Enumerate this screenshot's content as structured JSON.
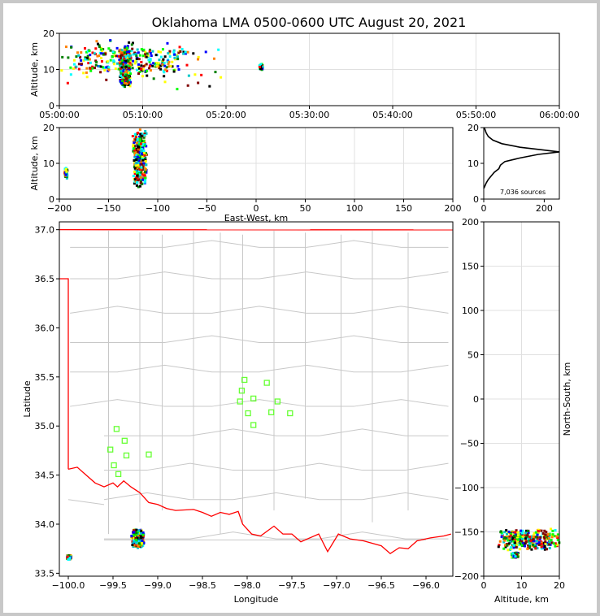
{
  "title": "Oklahoma LMA 0500-0600 UTC August 20, 2021",
  "colors": {
    "grid": "#e0e0e0",
    "state_border": "#ff0000",
    "county_lines": "#c8c8c8",
    "stations": "#66ff33",
    "profile": "#000000",
    "source_palette": [
      "#00ffff",
      "#00c8c8",
      "#0000ff",
      "#00ff00",
      "#008000",
      "#ffff00",
      "#ff8000",
      "#ff0000",
      "#800000",
      "#000000"
    ]
  },
  "chart_data": [
    {
      "id": "time-height",
      "type": "scatter",
      "xlabel": "",
      "ylabel": "Altitude, km",
      "xticks": [
        "05:00:00",
        "05:10:00",
        "05:20:00",
        "05:30:00",
        "05:40:00",
        "05:50:00",
        "06:00:00"
      ],
      "xlim_minutes": [
        0,
        60
      ],
      "ylim": [
        0,
        20
      ],
      "yticks": [
        0,
        10,
        20
      ],
      "grid": true,
      "clusters": [
        {
          "x_min": 0,
          "x_max": 16,
          "y_min": 9,
          "y_max": 17,
          "density": "high"
        },
        {
          "x_min": 7,
          "x_max": 8.5,
          "y_min": 5,
          "y_max": 17,
          "density": "high"
        },
        {
          "x_min": 0,
          "x_max": 20,
          "y_min": 4,
          "y_max": 19,
          "density": "low"
        },
        {
          "x_min": 23.8,
          "x_max": 24.3,
          "y_min": 10,
          "y_max": 12,
          "density": "medium"
        }
      ]
    },
    {
      "id": "east-west-altitude",
      "type": "scatter",
      "xlabel": "East-West, km",
      "ylabel": "Altitude, km",
      "xlim": [
        -200,
        200
      ],
      "xticks": [
        -200,
        -150,
        -100,
        -50,
        0,
        50,
        100,
        150,
        200
      ],
      "ylim": [
        0,
        20
      ],
      "yticks": [
        0,
        10,
        20
      ],
      "grid": true,
      "clusters": [
        {
          "x_min": -127,
          "x_max": -112,
          "y_min": 3,
          "y_max": 20,
          "density": "high"
        },
        {
          "x_min": -196,
          "x_max": -193,
          "y_min": 6,
          "y_max": 9,
          "density": "low"
        }
      ]
    },
    {
      "id": "altitude-histogram",
      "type": "line",
      "xlabel": "",
      "ylabel": "",
      "xlim": [
        0,
        250
      ],
      "xticks": [
        0,
        200
      ],
      "ylim": [
        0,
        20
      ],
      "yticks": [
        0,
        10,
        20
      ],
      "annotation": "7,036 sources",
      "profile": [
        [
          0,
          3
        ],
        [
          3,
          3.5
        ],
        [
          8,
          4.5
        ],
        [
          15,
          5.5
        ],
        [
          25,
          6.5
        ],
        [
          35,
          7.5
        ],
        [
          50,
          8.5
        ],
        [
          55,
          9.5
        ],
        [
          70,
          10.5
        ],
        [
          120,
          11.5
        ],
        [
          180,
          12.5
        ],
        [
          250,
          13.2
        ],
        [
          200,
          13.7
        ],
        [
          120,
          14.5
        ],
        [
          60,
          15.5
        ],
        [
          30,
          16.5
        ],
        [
          15,
          17.5
        ],
        [
          8,
          18.5
        ],
        [
          4,
          19.5
        ],
        [
          2,
          20
        ]
      ]
    },
    {
      "id": "plan-view",
      "type": "scatter",
      "xlabel": "Longitude",
      "ylabel": "Latitude",
      "xlim": [
        -100.1,
        -95.7
      ],
      "ylim": [
        33.47,
        37.08
      ],
      "xticks": [
        "-100.0",
        "-99.5",
        "-99.0",
        "-98.5",
        "-98.0",
        "-97.5",
        "-97.0",
        "-96.5",
        "-96.0"
      ],
      "yticks": [
        "33.5",
        "34.0",
        "34.5",
        "35.0",
        "35.5",
        "36.0",
        "36.5",
        "37.0"
      ],
      "grid": true,
      "stations": [
        [
          -98.03,
          35.47
        ],
        [
          -97.78,
          35.44
        ],
        [
          -98.06,
          35.36
        ],
        [
          -97.93,
          35.28
        ],
        [
          -97.66,
          35.25
        ],
        [
          -98.08,
          35.25
        ],
        [
          -97.99,
          35.13
        ],
        [
          -97.73,
          35.14
        ],
        [
          -97.52,
          35.13
        ],
        [
          -97.93,
          35.01
        ],
        [
          -99.46,
          34.97
        ],
        [
          -99.37,
          34.85
        ],
        [
          -99.53,
          34.76
        ],
        [
          -99.1,
          34.71
        ],
        [
          -99.35,
          34.7
        ],
        [
          -99.49,
          34.6
        ],
        [
          -99.44,
          34.51
        ]
      ],
      "clusters": [
        {
          "lon_min": -99.31,
          "lon_max": -99.16,
          "lat_min": 33.77,
          "lat_max": 33.96,
          "density": "high"
        },
        {
          "lon_min": -100.03,
          "lon_max": -99.98,
          "lat_min": 33.65,
          "lat_max": 33.7,
          "density": "low"
        }
      ]
    },
    {
      "id": "altitude-north-south",
      "type": "scatter",
      "xlabel": "Altitude, km",
      "ylabel": "North-South, km",
      "xlim": [
        0,
        20
      ],
      "xticks": [
        0,
        10,
        20
      ],
      "ylim": [
        -200,
        200
      ],
      "yticks": [
        200,
        150,
        100,
        50,
        0,
        -50,
        -100,
        -150,
        -200
      ],
      "grid": true,
      "clusters": [
        {
          "x_min": 3,
          "x_max": 20,
          "y_min": -170,
          "y_max": -145,
          "density": "high"
        },
        {
          "x_min": 7,
          "x_max": 9,
          "y_min": -178,
          "y_max": -172,
          "density": "low"
        }
      ]
    }
  ]
}
